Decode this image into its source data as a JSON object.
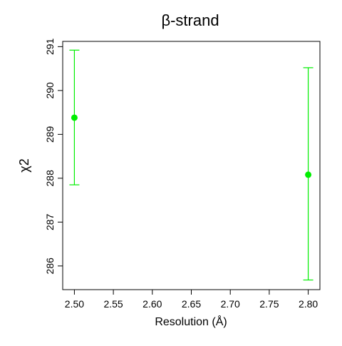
{
  "chart_data": {
    "type": "scatter",
    "title": "β-strand",
    "xlabel": "Resolution (Å)",
    "ylabel": "χ2",
    "xlim": [
      2.485,
      2.815
    ],
    "ylim": [
      285.46,
      291.12
    ],
    "x_ticks": [
      2.5,
      2.55,
      2.6,
      2.65,
      2.7,
      2.75,
      2.8
    ],
    "x_tick_labels": [
      "2.50",
      "2.55",
      "2.60",
      "2.65",
      "2.70",
      "2.75",
      "2.80"
    ],
    "y_ticks": [
      286,
      287,
      288,
      289,
      290,
      291
    ],
    "y_tick_labels": [
      "286",
      "287",
      "288",
      "289",
      "290",
      "291"
    ],
    "grid": false,
    "series_color": "#00ee00",
    "points": [
      {
        "x": 2.5,
        "y": 289.38,
        "y_low": 287.85,
        "y_high": 290.92
      },
      {
        "x": 2.8,
        "y": 288.08,
        "y_low": 285.68,
        "y_high": 290.52
      }
    ]
  }
}
